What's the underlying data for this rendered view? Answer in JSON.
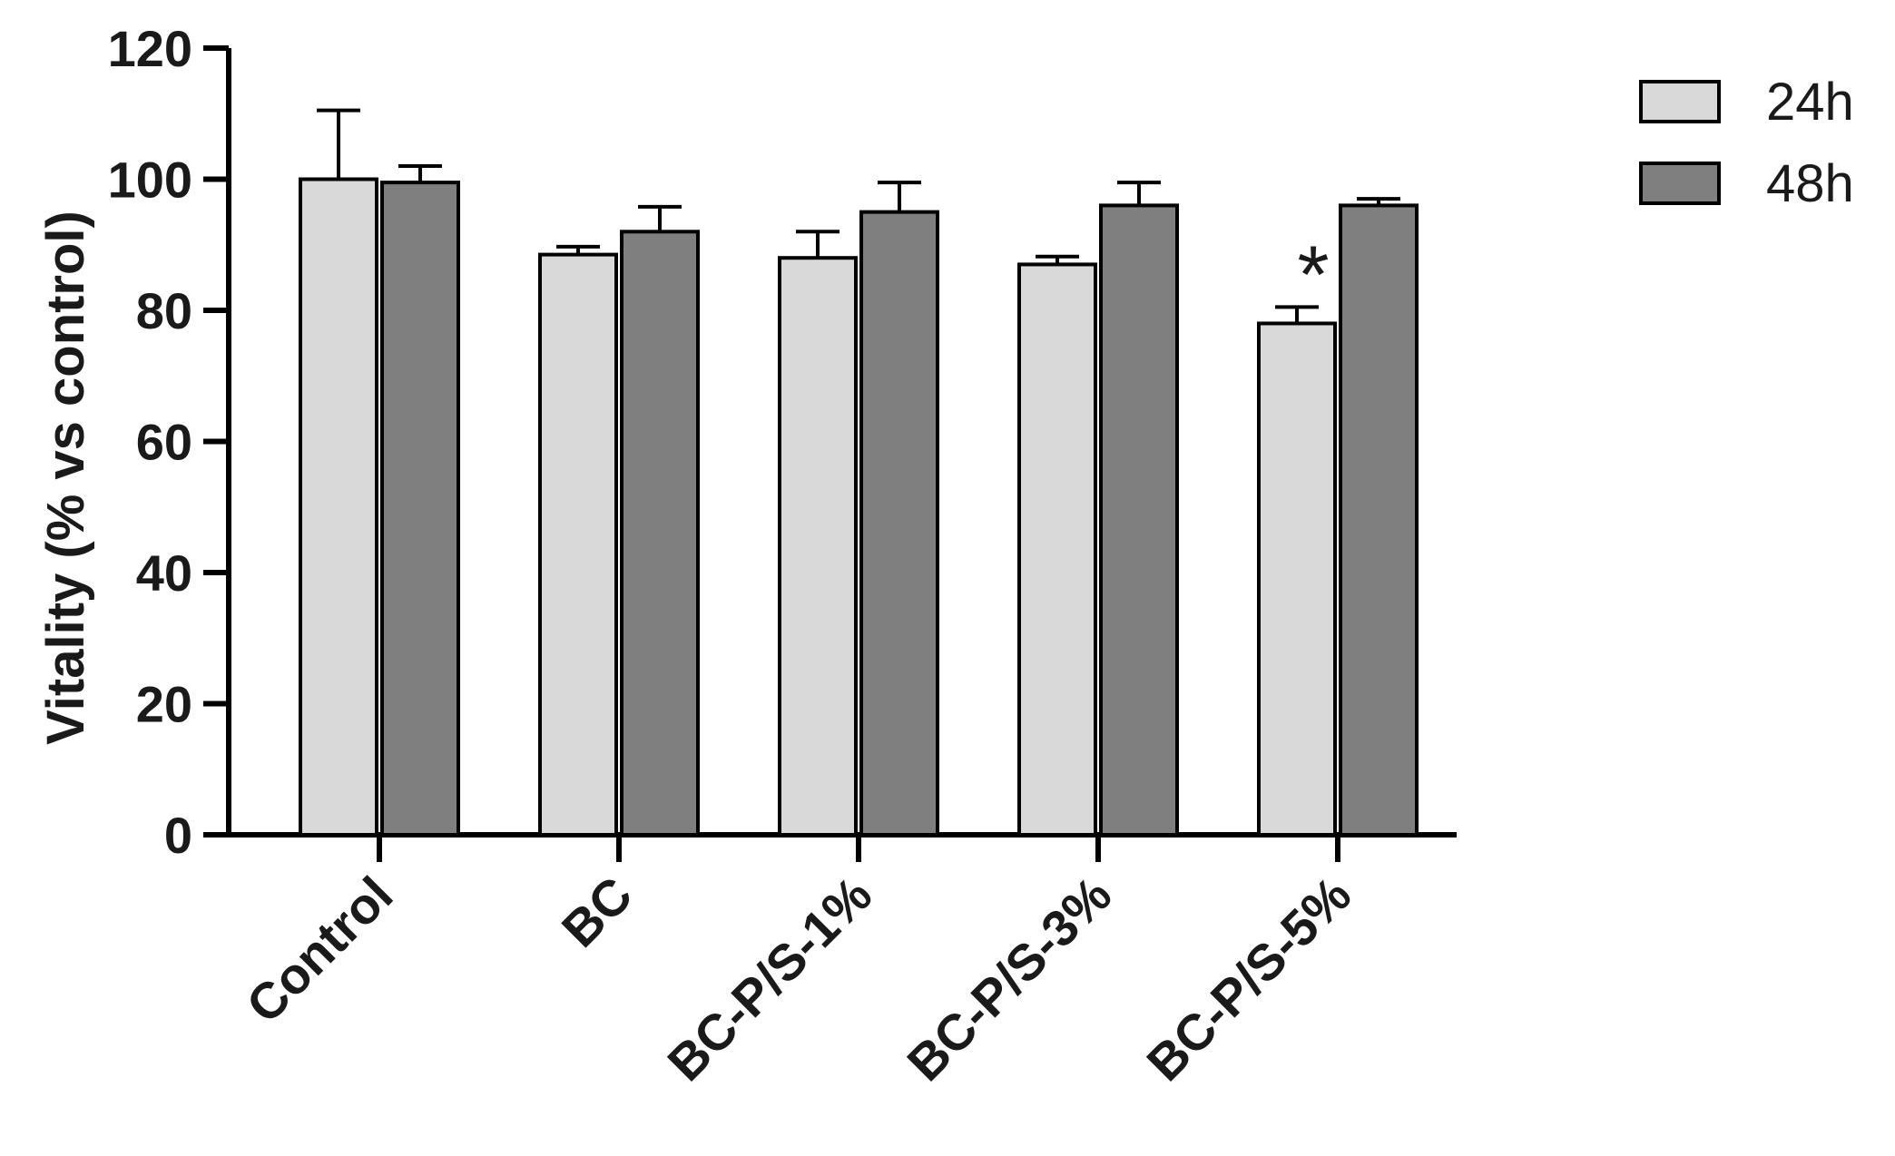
{
  "chart_data": {
    "type": "bar",
    "ylabel": "Vitality (% vs control)",
    "xlabel": "",
    "ylim": [
      0,
      120
    ],
    "yticks": [
      0,
      20,
      40,
      60,
      80,
      100,
      120
    ],
    "categories": [
      "Control",
      "BC",
      "BC-P/S-1%",
      "BC-P/S-3%",
      "BC-P/S-5%"
    ],
    "series": [
      {
        "name": "24h",
        "color": "#d9d9d9",
        "values": [
          100,
          88.5,
          88,
          87,
          78
        ],
        "errors": [
          10.5,
          1.2,
          4,
          1.2,
          2.5
        ]
      },
      {
        "name": "48h",
        "color": "#7f7f7f",
        "values": [
          99.5,
          92,
          95,
          96,
          96
        ],
        "errors": [
          2.5,
          3.8,
          4.5,
          3.5,
          1
        ]
      }
    ],
    "annotations": [
      {
        "category": "BC-P/S-5%",
        "series": "24h",
        "text": "*"
      }
    ],
    "legend": "top-right",
    "grid": false
  }
}
